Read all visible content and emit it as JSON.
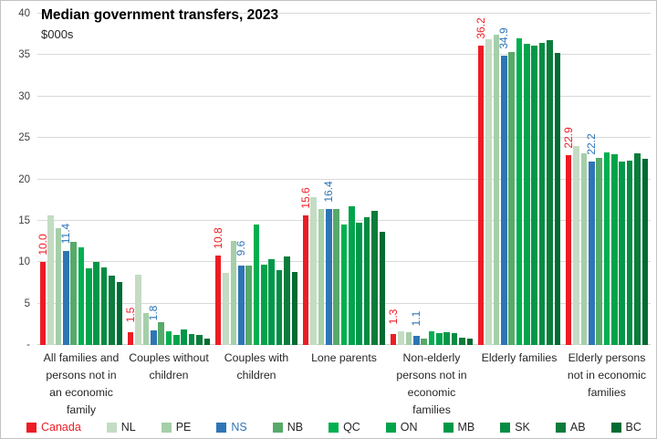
{
  "chart_data": {
    "type": "bar",
    "title": "Median government transfers, 2023",
    "subtitle": "$000s",
    "xlabel": "",
    "ylabel": "$000s",
    "ylim": [
      0,
      40
    ],
    "grid": true,
    "legend_position": "bottom",
    "y_ticks": [
      {
        "label": "40",
        "value": 40
      },
      {
        "label": "35",
        "value": 35
      },
      {
        "label": "30",
        "value": 30
      },
      {
        "label": "25",
        "value": 25
      },
      {
        "label": "20",
        "value": 20
      },
      {
        "label": "15",
        "value": 15
      },
      {
        "label": "10",
        "value": 10
      },
      {
        "label": "5",
        "value": 5
      },
      {
        "label": "-",
        "value": 0
      }
    ],
    "categories": [
      "All families and persons not in an economic family",
      "Couples without children",
      "Couples with children",
      "Lone parents",
      "Non-elderly persons not in economic families",
      "Elderly families",
      "Elderly persons not in economic families"
    ],
    "series": [
      {
        "name": "Canada",
        "color": "#ed1c24",
        "text_color": "#ed1c24",
        "show_labels": true,
        "values": [
          10.0,
          1.5,
          10.8,
          15.6,
          1.3,
          36.2,
          22.9
        ]
      },
      {
        "name": "NL",
        "color": "#c3dcc3",
        "text_color": "#262626",
        "show_labels": false,
        "values": [
          15.7,
          8.5,
          8.7,
          17.8,
          1.7,
          36.9,
          24.0
        ]
      },
      {
        "name": "PE",
        "color": "#a5cfa9",
        "text_color": "#262626",
        "show_labels": false,
        "values": [
          14.1,
          3.9,
          12.6,
          16.4,
          1.5,
          37.5,
          23.1
        ]
      },
      {
        "name": "NS",
        "color": "#2e75b6",
        "text_color": "#2e75b6",
        "show_labels": true,
        "values": [
          11.4,
          1.8,
          9.6,
          16.4,
          1.1,
          34.9,
          22.2
        ]
      },
      {
        "name": "NB",
        "color": "#57aa6a",
        "text_color": "#262626",
        "show_labels": false,
        "values": [
          12.5,
          2.8,
          9.6,
          16.4,
          0.8,
          35.4,
          22.6
        ]
      },
      {
        "name": "QC",
        "color": "#00b050",
        "text_color": "#262626",
        "show_labels": false,
        "values": [
          11.8,
          1.7,
          14.5,
          14.6,
          1.6,
          37.0,
          23.2
        ]
      },
      {
        "name": "ON",
        "color": "#00a44b",
        "text_color": "#262626",
        "show_labels": false,
        "values": [
          9.3,
          1.2,
          9.7,
          16.7,
          1.4,
          36.4,
          23.0
        ]
      },
      {
        "name": "MB",
        "color": "#009848",
        "text_color": "#262626",
        "show_labels": false,
        "values": [
          10.0,
          1.9,
          10.4,
          14.8,
          1.5,
          36.2,
          22.2
        ]
      },
      {
        "name": "SK",
        "color": "#068c43",
        "text_color": "#262626",
        "show_labels": false,
        "values": [
          9.4,
          1.3,
          9.0,
          15.4,
          1.4,
          36.5,
          22.3
        ]
      },
      {
        "name": "AB",
        "color": "#0b7c3b",
        "text_color": "#262626",
        "show_labels": false,
        "values": [
          8.4,
          1.2,
          10.7,
          16.2,
          0.9,
          36.8,
          23.1
        ]
      },
      {
        "name": "BC",
        "color": "#006b32",
        "text_color": "#262626",
        "show_labels": false,
        "values": [
          7.6,
          0.8,
          8.8,
          13.7,
          0.8,
          35.3,
          22.5
        ]
      }
    ],
    "data_labels_note": "Only Canada (red) and NS (blue) series show rotated numeric labels above their bars"
  },
  "colors": {
    "accent_red": "#ed1c24",
    "accent_blue": "#2e75b6",
    "gridline": "#d9d9d9",
    "text": "#262626"
  }
}
